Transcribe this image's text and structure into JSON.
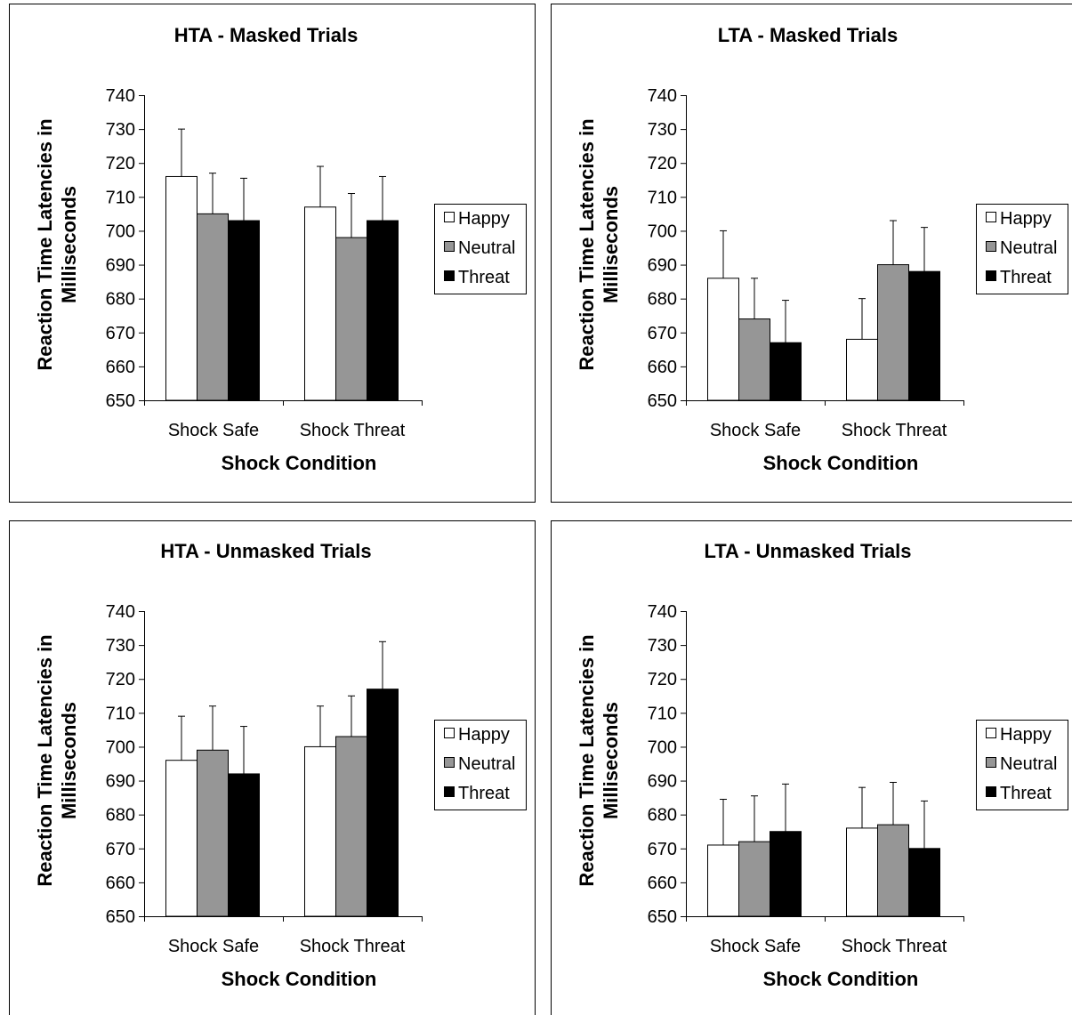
{
  "chart_data": [
    {
      "type": "bar",
      "title": "HTA - Masked Trials",
      "xlabel": "Shock Condition",
      "ylabel": "Reaction Time Latencies in Milliseconds",
      "ylabel_lines": [
        "Reaction Time Latencies in",
        "Milliseconds"
      ],
      "ylim": [
        650,
        740
      ],
      "yticks": [
        650,
        660,
        670,
        680,
        690,
        700,
        710,
        720,
        730,
        740
      ],
      "categories": [
        "Shock Safe",
        "Shock Threat"
      ],
      "series": [
        {
          "name": "Happy",
          "values": [
            716,
            707
          ],
          "errors": [
            14,
            12
          ],
          "color": "#ffffff"
        },
        {
          "name": "Neutral",
          "values": [
            705,
            698
          ],
          "errors": [
            12,
            13
          ],
          "color": "#969696"
        },
        {
          "name": "Threat",
          "values": [
            703,
            703
          ],
          "errors": [
            12.5,
            13
          ],
          "color": "#000000"
        }
      ],
      "legend": "right",
      "grid": false
    },
    {
      "type": "bar",
      "title": "LTA - Masked Trials",
      "xlabel": "Shock Condition",
      "ylabel": "Reaction Time Latencies in Milliseconds",
      "ylabel_lines": [
        "Reaction Time Latencies in",
        "Milliseconds"
      ],
      "ylim": [
        650,
        740
      ],
      "yticks": [
        650,
        660,
        670,
        680,
        690,
        700,
        710,
        720,
        730,
        740
      ],
      "categories": [
        "Shock Safe",
        "Shock Threat"
      ],
      "series": [
        {
          "name": "Happy",
          "values": [
            686,
            668
          ],
          "errors": [
            14,
            12
          ],
          "color": "#ffffff"
        },
        {
          "name": "Neutral",
          "values": [
            674,
            690
          ],
          "errors": [
            12,
            13
          ],
          "color": "#969696"
        },
        {
          "name": "Threat",
          "values": [
            667,
            688
          ],
          "errors": [
            12.5,
            13
          ],
          "color": "#000000"
        }
      ],
      "legend": "right",
      "grid": false
    },
    {
      "type": "bar",
      "title": "HTA - Unmasked Trials",
      "xlabel": "Shock Condition",
      "ylabel": "Reaction Time Latencies in Milliseconds",
      "ylabel_lines": [
        "Reaction Time Latencies in",
        "Milliseconds"
      ],
      "ylim": [
        650,
        740
      ],
      "yticks": [
        650,
        660,
        670,
        680,
        690,
        700,
        710,
        720,
        730,
        740
      ],
      "categories": [
        "Shock Safe",
        "Shock Threat"
      ],
      "series": [
        {
          "name": "Happy",
          "values": [
            696,
            700
          ],
          "errors": [
            13,
            12
          ],
          "color": "#ffffff"
        },
        {
          "name": "Neutral",
          "values": [
            699,
            703
          ],
          "errors": [
            13,
            12
          ],
          "color": "#969696"
        },
        {
          "name": "Threat",
          "values": [
            692,
            717
          ],
          "errors": [
            14,
            14
          ],
          "color": "#000000"
        }
      ],
      "legend": "right",
      "grid": false
    },
    {
      "type": "bar",
      "title": "LTA - Unmasked Trials",
      "xlabel": "Shock Condition",
      "ylabel": "Reaction Time Latencies in Milliseconds",
      "ylabel_lines": [
        "Reaction Time Latencies in",
        "Milliseconds"
      ],
      "ylim": [
        650,
        740
      ],
      "yticks": [
        650,
        660,
        670,
        680,
        690,
        700,
        710,
        720,
        730,
        740
      ],
      "categories": [
        "Shock Safe",
        "Shock Threat"
      ],
      "series": [
        {
          "name": "Happy",
          "values": [
            671,
            676
          ],
          "errors": [
            13.5,
            12
          ],
          "color": "#ffffff"
        },
        {
          "name": "Neutral",
          "values": [
            672,
            677
          ],
          "errors": [
            13.5,
            12.5
          ],
          "color": "#969696"
        },
        {
          "name": "Threat",
          "values": [
            675,
            670
          ],
          "errors": [
            14,
            14
          ],
          "color": "#000000"
        }
      ],
      "legend": "right",
      "grid": false
    }
  ]
}
